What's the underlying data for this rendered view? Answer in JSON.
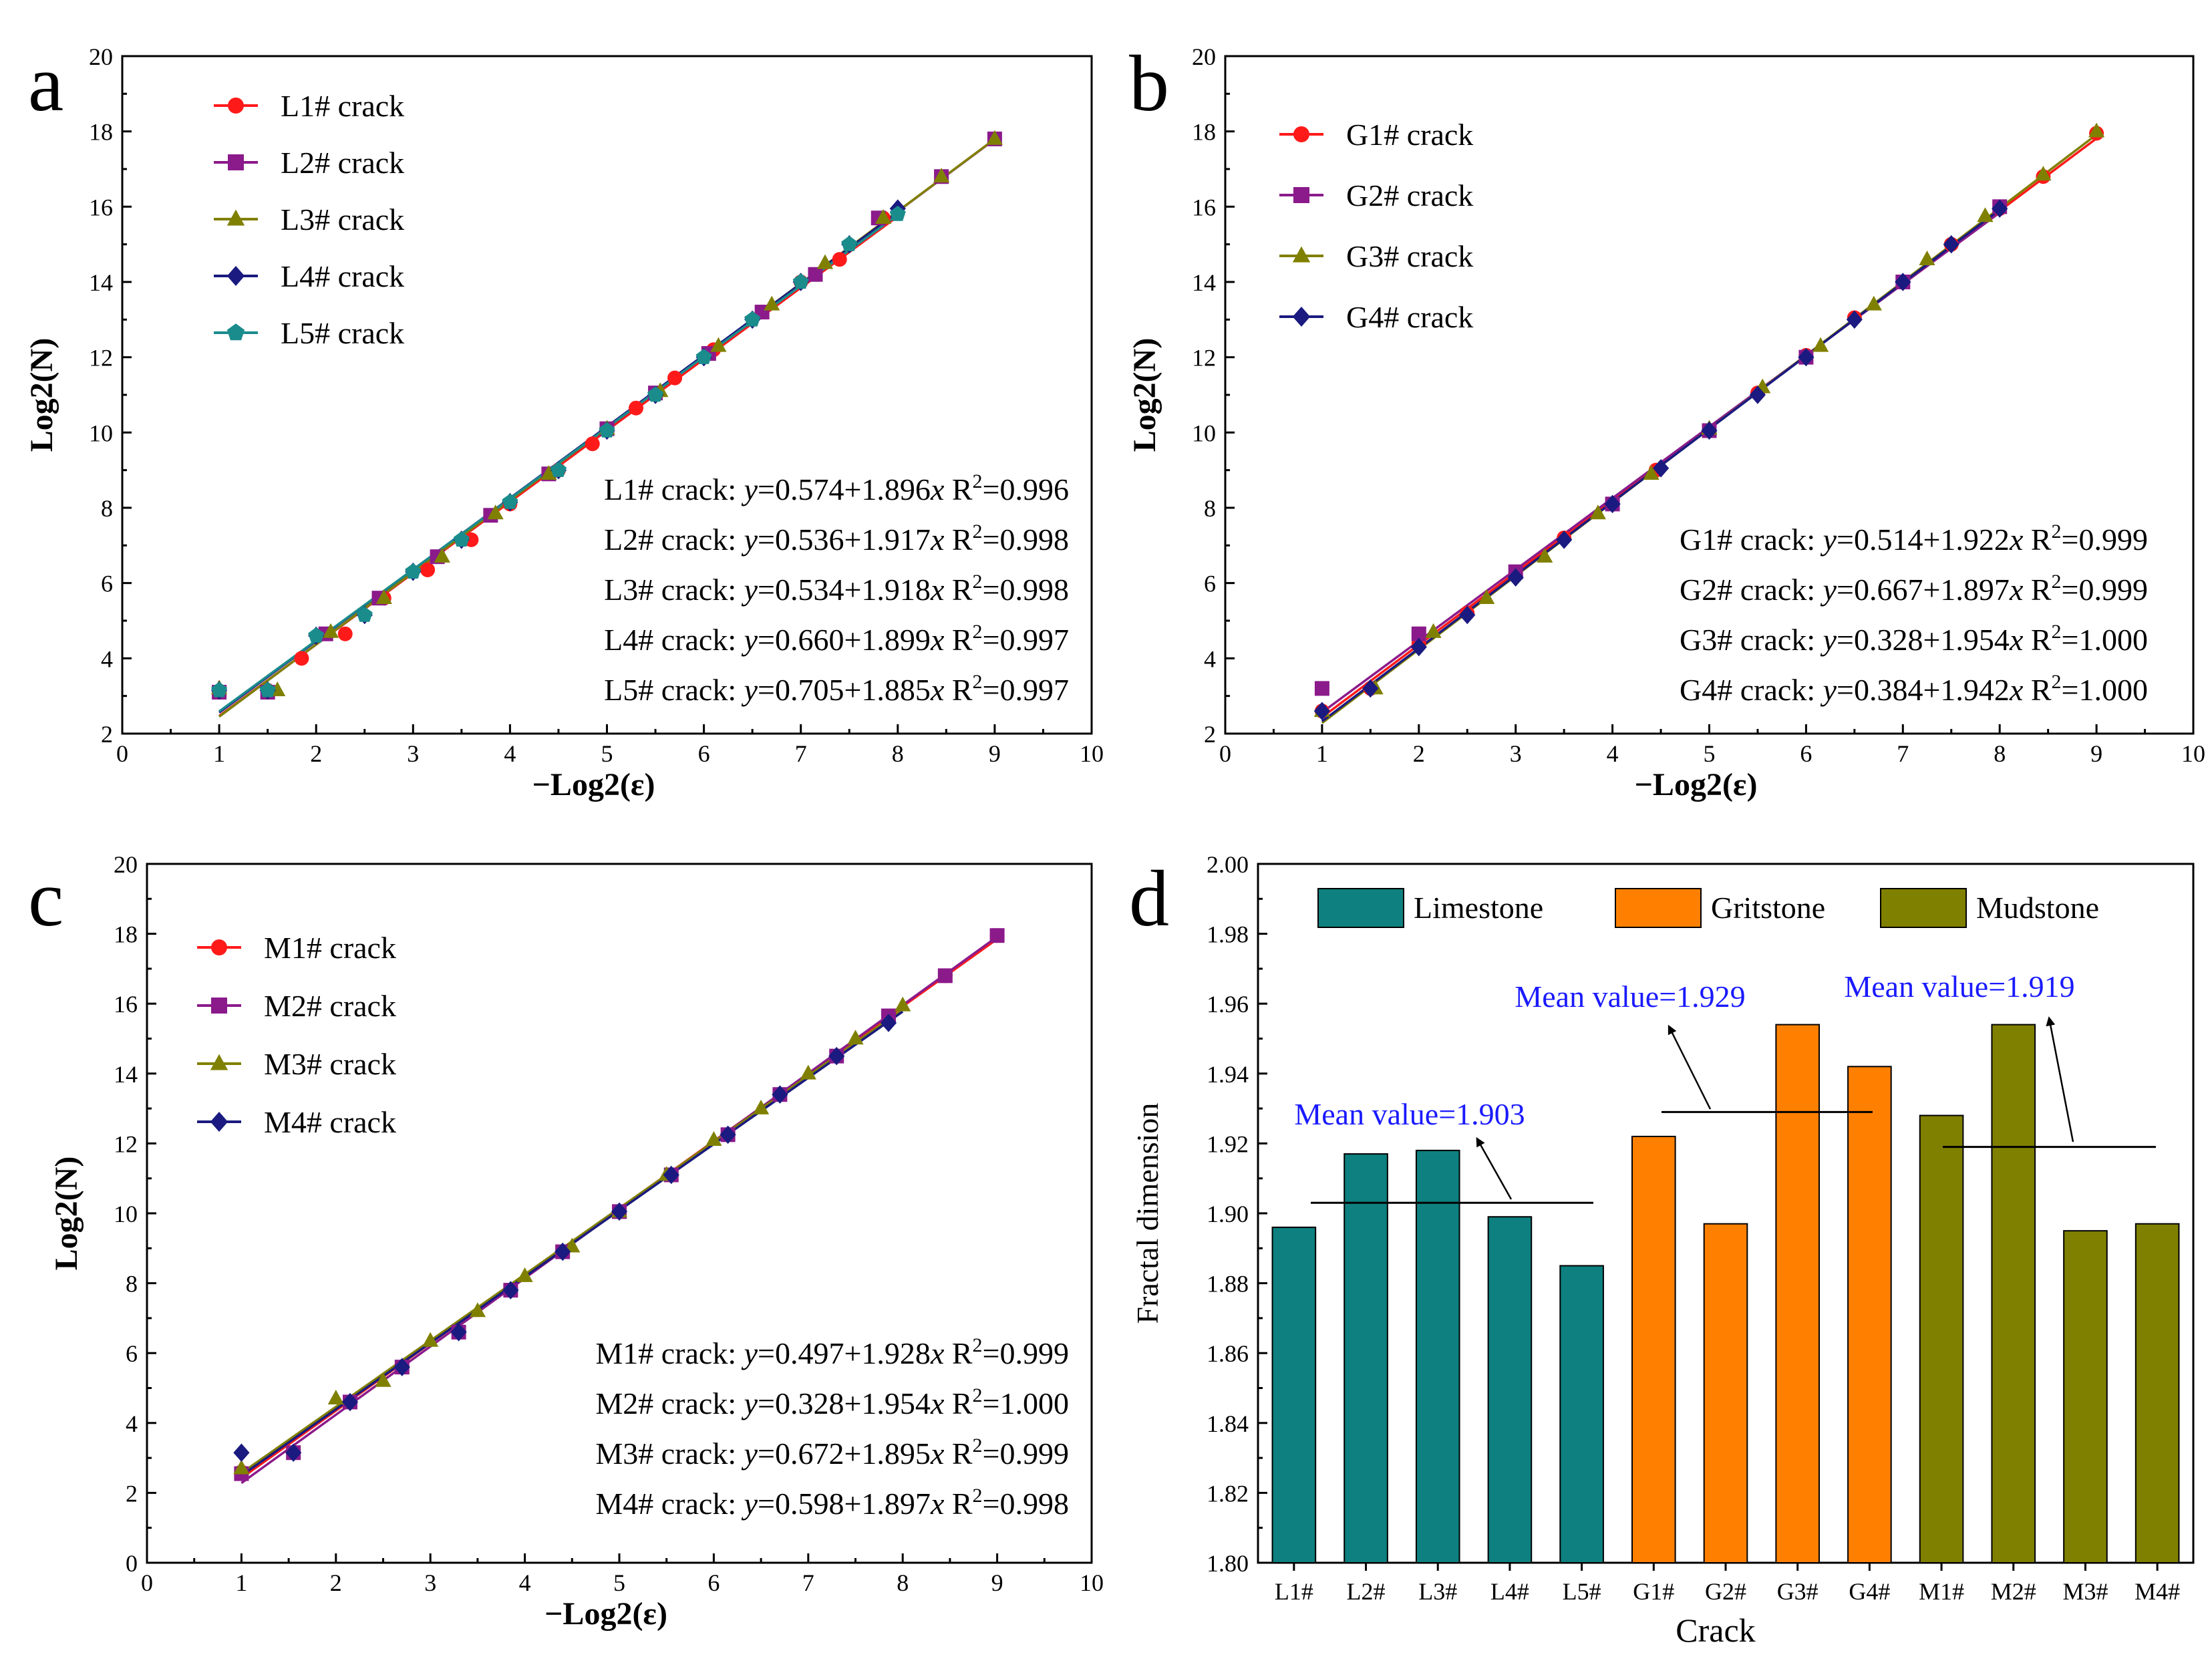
{
  "figure_panels": [
    "a",
    "b",
    "c",
    "d"
  ],
  "chart_data": [
    {
      "panel": "a",
      "type": "line",
      "xlabel": "−Log2(ε)",
      "ylabel": "Log2(N)",
      "xlim": [
        0,
        10
      ],
      "ylim": [
        2,
        20
      ],
      "xticks": [
        "0",
        "1",
        "2",
        "3",
        "4",
        "5",
        "6",
        "7",
        "8",
        "9",
        "10"
      ],
      "yticks": [
        "2",
        "4",
        "6",
        "8",
        "10",
        "12",
        "14",
        "16",
        "18",
        "20"
      ],
      "legend_position": "top-left",
      "series": [
        {
          "name": "L1# crack",
          "color": "#ff1a1a",
          "marker": "circle",
          "intercept": 0.574,
          "slope": 1.896,
          "r2": "0.996",
          "x_end": 8,
          "x": [
            1,
            1.5,
            1.85,
            2.3,
            2.7,
            3.15,
            3.6,
            4.0,
            4.5,
            4.85,
            5.3,
            5.7,
            6.1,
            6.6,
            7.0,
            7.4,
            7.85
          ],
          "y": [
            3.1,
            3.15,
            4.0,
            4.65,
            5.6,
            6.35,
            7.15,
            8.1,
            9.0,
            9.7,
            10.65,
            11.45,
            12.2,
            13.2,
            14.0,
            14.6,
            15.7
          ]
        },
        {
          "name": "L2# crack",
          "color": "#8b1a8b",
          "marker": "square",
          "intercept": 0.536,
          "slope": 1.917,
          "r2": "0.998",
          "x_end": 9,
          "x": [
            1,
            1.5,
            2.1,
            2.65,
            3.25,
            3.8,
            4.4,
            5.0,
            5.5,
            6.05,
            6.6,
            7.15,
            7.8,
            8.45,
            9.0
          ],
          "y": [
            3.1,
            3.1,
            4.65,
            5.6,
            6.7,
            7.8,
            8.9,
            10.1,
            11.05,
            12.1,
            13.2,
            14.2,
            15.7,
            16.8,
            17.8
          ]
        },
        {
          "name": "L3# crack",
          "color": "#808000",
          "marker": "triangle",
          "intercept": 0.534,
          "slope": 1.918,
          "r2": "0.998",
          "x_end": 9,
          "x": [
            1,
            1.6,
            2.15,
            2.7,
            3.3,
            3.85,
            4.4,
            5.0,
            5.55,
            6.15,
            6.7,
            7.25,
            7.85,
            8.45,
            9.0
          ],
          "y": [
            3.2,
            3.15,
            4.7,
            5.6,
            6.7,
            7.85,
            8.9,
            10.1,
            11.1,
            12.3,
            13.4,
            14.5,
            15.7,
            16.8,
            17.8
          ]
        },
        {
          "name": "L4# crack",
          "color": "#1a1a80",
          "marker": "diamond",
          "intercept": 0.66,
          "slope": 1.899,
          "r2": "0.997",
          "x_end": 8,
          "x": [
            1,
            1.5,
            2.0,
            2.5,
            3.0,
            3.5,
            4.0,
            4.5,
            5.0,
            5.5,
            6.0,
            6.5,
            7.0,
            7.5,
            8.0
          ],
          "y": [
            3.15,
            3.15,
            4.6,
            5.15,
            6.3,
            7.15,
            8.15,
            9.0,
            10.05,
            11.0,
            12.0,
            13.0,
            14.0,
            15.0,
            15.95
          ]
        },
        {
          "name": "L5# crack",
          "color": "#1a8c8c",
          "marker": "pentagon",
          "intercept": 0.705,
          "slope": 1.885,
          "r2": "0.997",
          "x_end": 8,
          "x": [
            1,
            1.5,
            2.0,
            2.5,
            3.0,
            3.5,
            4.0,
            4.5,
            5.0,
            5.5,
            6.0,
            6.5,
            7.0,
            7.5,
            8.0
          ],
          "y": [
            3.15,
            3.15,
            4.6,
            5.15,
            6.3,
            7.15,
            8.15,
            9.0,
            10.05,
            11.0,
            12.0,
            13.0,
            14.0,
            15.0,
            15.8
          ]
        }
      ],
      "equations": [
        {
          "prefix": "L1# crack: ",
          "fit": "=0.574+1.896",
          "r2": "=0.996"
        },
        {
          "prefix": "L2# crack: ",
          "fit": "=0.536+1.917",
          "r2": "=0.998"
        },
        {
          "prefix": "L3# crack: ",
          "fit": "=0.534+1.918",
          "r2": "=0.998"
        },
        {
          "prefix": "L4# crack: ",
          "fit": "=0.660+1.899",
          "r2": "=0.997"
        },
        {
          "prefix": "L5# crack: ",
          "fit": "=0.705+1.885",
          "r2": "=0.997"
        }
      ]
    },
    {
      "panel": "b",
      "type": "line",
      "xlabel": "−Log2(ε)",
      "ylabel": "Log2(N)",
      "xlim": [
        0,
        10
      ],
      "ylim": [
        2,
        20
      ],
      "xticks": [
        "0",
        "1",
        "2",
        "3",
        "4",
        "5",
        "6",
        "7",
        "8",
        "9",
        "10"
      ],
      "yticks": [
        "2",
        "4",
        "6",
        "8",
        "10",
        "12",
        "14",
        "16",
        "18",
        "20"
      ],
      "legend_position": "top-left",
      "series": [
        {
          "name": "G1# crack",
          "color": "#ff1a1a",
          "marker": "circle",
          "intercept": 0.514,
          "slope": 1.922,
          "r2": "0.999",
          "x_end": 9,
          "x": [
            1,
            1.5,
            2.0,
            2.5,
            3.0,
            3.5,
            4.0,
            4.45,
            5.0,
            5.5,
            6.0,
            6.5,
            7.0,
            7.5,
            8.0,
            8.45,
            9.0
          ],
          "y": [
            2.6,
            3.2,
            4.4,
            5.2,
            6.2,
            7.2,
            8.1,
            9.0,
            10.05,
            11.05,
            12.05,
            13.05,
            14.0,
            15.0,
            15.95,
            16.8,
            17.95
          ]
        },
        {
          "name": "G2# crack",
          "color": "#8b1a8b",
          "marker": "square",
          "intercept": 0.667,
          "slope": 1.897,
          "r2": "0.999",
          "x_end": 8,
          "x": [
            1,
            2.0,
            3.0,
            4.0,
            5.0,
            6.0,
            7.0,
            8.0
          ],
          "y": [
            3.2,
            4.65,
            6.3,
            8.1,
            10.05,
            12.0,
            14.0,
            16.0
          ]
        },
        {
          "name": "G3# crack",
          "color": "#808000",
          "marker": "triangle",
          "intercept": 0.328,
          "slope": 1.954,
          "r2": "1.000",
          "x_end": 9,
          "x": [
            1,
            1.55,
            2.15,
            2.7,
            3.3,
            3.85,
            4.4,
            5.0,
            5.55,
            6.15,
            6.7,
            7.25,
            7.85,
            8.45,
            9.0
          ],
          "y": [
            2.6,
            3.2,
            4.7,
            5.6,
            6.7,
            7.85,
            8.9,
            10.1,
            11.2,
            12.3,
            13.4,
            14.6,
            15.75,
            16.85,
            18.0
          ]
        },
        {
          "name": "G4# crack",
          "color": "#1a1a80",
          "marker": "diamond",
          "intercept": 0.384,
          "slope": 1.942,
          "r2": "1.000",
          "x_end": 8,
          "x": [
            1,
            1.5,
            2.0,
            2.5,
            3.0,
            3.5,
            4.0,
            4.5,
            5.0,
            5.5,
            6.0,
            6.5,
            7.0,
            7.5,
            8.0
          ],
          "y": [
            2.6,
            3.2,
            4.3,
            5.15,
            6.15,
            7.15,
            8.1,
            9.05,
            10.05,
            11.0,
            12.0,
            13.0,
            14.0,
            15.0,
            15.95
          ]
        }
      ],
      "equations": [
        {
          "prefix": "G1# crack: ",
          "fit": "=0.514+1.922",
          "r2": "=0.999"
        },
        {
          "prefix": "G2# crack: ",
          "fit": "=0.667+1.897",
          "r2": "=0.999"
        },
        {
          "prefix": "G3# crack: ",
          "fit": "=0.328+1.954",
          "r2": "=1.000"
        },
        {
          "prefix": "G4# crack: ",
          "fit": "=0.384+1.942",
          "r2": "=1.000"
        }
      ]
    },
    {
      "panel": "c",
      "type": "line",
      "xlabel": "−Log2(ε)",
      "ylabel": "Log2(N)",
      "xlim": [
        0,
        10
      ],
      "ylim": [
        0,
        20
      ],
      "xticks": [
        "0",
        "1",
        "2",
        "3",
        "4",
        "5",
        "6",
        "7",
        "8",
        "9",
        "10"
      ],
      "yticks": [
        "0",
        "2",
        "4",
        "6",
        "8",
        "10",
        "12",
        "14",
        "16",
        "18",
        "20"
      ],
      "legend_position": "top-left",
      "series": [
        {
          "name": "M1# crack",
          "color": "#ff1a1a",
          "marker": "circle",
          "intercept": 0.497,
          "slope": 1.928,
          "r2": "0.999",
          "x_end": 9,
          "x": [
            1,
            2.15,
            2.7,
            3.3,
            3.85,
            4.4,
            5.0,
            5.55,
            6.15,
            6.7,
            7.3,
            7.85,
            8.45,
            9.0
          ],
          "y": [
            2.6,
            4.6,
            5.6,
            6.6,
            7.8,
            8.9,
            10.05,
            11.1,
            12.25,
            13.4,
            14.5,
            15.65,
            16.8,
            17.95
          ]
        },
        {
          "name": "M2# crack",
          "color": "#8b1a8b",
          "marker": "square",
          "intercept": 0.328,
          "slope": 1.954,
          "r2": "1.000",
          "x_end": 9,
          "x": [
            1,
            1.55,
            2.15,
            2.7,
            3.3,
            3.85,
            4.4,
            5.0,
            5.55,
            6.15,
            6.7,
            7.3,
            7.85,
            8.45,
            9.0
          ],
          "y": [
            2.55,
            3.15,
            4.6,
            5.6,
            6.6,
            7.8,
            8.9,
            10.05,
            11.1,
            12.25,
            13.4,
            14.5,
            15.65,
            16.8,
            17.95
          ]
        },
        {
          "name": "M3# crack",
          "color": "#808000",
          "marker": "triangle",
          "intercept": 0.672,
          "slope": 1.895,
          "r2": "0.999",
          "x_end": 8,
          "x": [
            1,
            2.0,
            2.5,
            3.0,
            3.5,
            4.0,
            4.5,
            5.0,
            5.5,
            6.0,
            6.5,
            7.0,
            7.5,
            8.0
          ],
          "y": [
            2.7,
            4.7,
            5.2,
            6.35,
            7.2,
            8.2,
            9.05,
            10.05,
            11.1,
            12.1,
            13.0,
            14.0,
            15.0,
            15.95
          ]
        },
        {
          "name": "M4# crack",
          "color": "#1a1a80",
          "marker": "diamond",
          "intercept": 0.598,
          "slope": 1.897,
          "r2": "0.998",
          "x_end": 8,
          "x": [
            1,
            1.55,
            2.15,
            2.7,
            3.3,
            3.85,
            4.4,
            5.0,
            5.55,
            6.15,
            6.7,
            7.3,
            7.85
          ],
          "y": [
            3.15,
            3.15,
            4.6,
            5.6,
            6.6,
            7.8,
            8.9,
            10.05,
            11.1,
            12.25,
            13.4,
            14.5,
            15.45
          ]
        }
      ],
      "equations": [
        {
          "prefix": "M1# crack: ",
          "fit": "=0.497+1.928",
          "r2": "=0.999"
        },
        {
          "prefix": "M2# crack: ",
          "fit": "=0.328+1.954",
          "r2": "=1.000"
        },
        {
          "prefix": "M3# crack: ",
          "fit": "=0.672+1.895",
          "r2": "=0.999"
        },
        {
          "prefix": "M4# crack: ",
          "fit": "=0.598+1.897",
          "r2": "=0.998"
        }
      ]
    },
    {
      "panel": "d",
      "type": "bar",
      "xlabel": "Crack",
      "ylabel": "Fractal dimension",
      "ylim": [
        1.8,
        2.0
      ],
      "yticks": [
        "1.80",
        "1.82",
        "1.84",
        "1.86",
        "1.88",
        "1.90",
        "1.92",
        "1.94",
        "1.96",
        "1.98",
        "2.00"
      ],
      "legend_position": "top",
      "categories": [
        "L1#",
        "L2#",
        "L3#",
        "L4#",
        "L5#",
        "G1#",
        "G2#",
        "G3#",
        "G4#",
        "M1#",
        "M2#",
        "M3#",
        "M4#"
      ],
      "values": [
        1.896,
        1.917,
        1.918,
        1.899,
        1.885,
        1.922,
        1.897,
        1.954,
        1.942,
        1.928,
        1.954,
        1.895,
        1.897
      ],
      "groups": [
        {
          "name": "Limestone",
          "color": "#0e8080",
          "start": 0,
          "end": 4,
          "mean": 1.903,
          "mean_label": "Mean value=1.903"
        },
        {
          "name": "Gritstone",
          "color": "#ff8000",
          "start": 5,
          "end": 8,
          "mean": 1.929,
          "mean_label": "Mean value=1.929"
        },
        {
          "name": "Mudstone",
          "color": "#808000",
          "start": 9,
          "end": 12,
          "mean": 1.919,
          "mean_label": "Mean value=1.919"
        }
      ]
    }
  ]
}
